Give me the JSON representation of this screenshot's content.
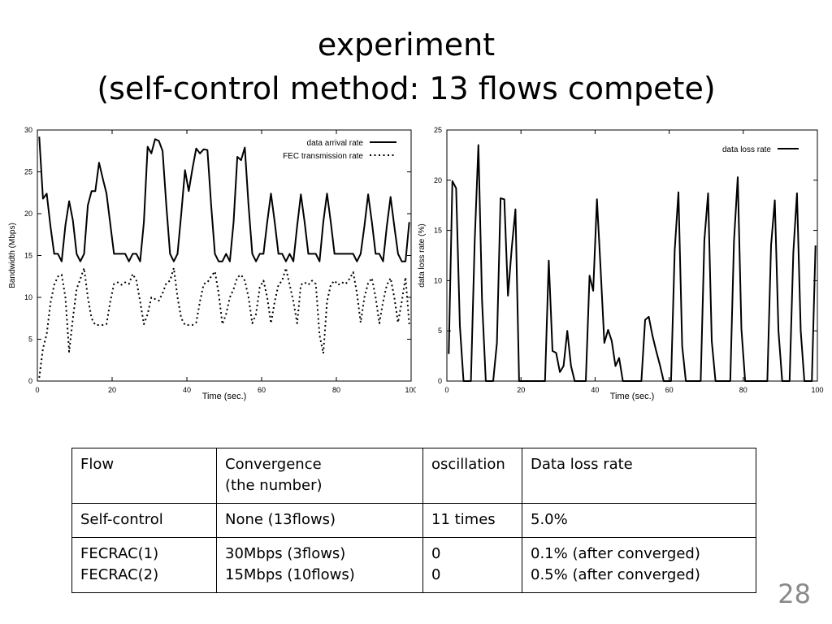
{
  "slide": {
    "title_line1": "experiment",
    "title_line2": "(self-control method: 13 flows compete)",
    "page_number": "28"
  },
  "chart_data": [
    {
      "type": "line",
      "xlabel": "Time (sec.)",
      "ylabel": "Bandwidth (Mbps)",
      "xlim": [
        0,
        100
      ],
      "ylim": [
        0,
        30
      ],
      "xticks": [
        0,
        20,
        40,
        60,
        80,
        100
      ],
      "yticks": [
        0,
        5,
        10,
        15,
        20,
        25,
        30
      ],
      "legend_position": "top-right",
      "grid": false,
      "series": [
        {
          "name": "data arrival rate",
          "style": "solid",
          "x": [
            0.5,
            1.5,
            2.5,
            3.5,
            4.5,
            5.5,
            6.5,
            7.5,
            8.5,
            9.5,
            10.5,
            11.5,
            12.5,
            13.5,
            14.5,
            15.5,
            16.5,
            17.5,
            18.5,
            19.5,
            20.5,
            21.5,
            22.5,
            23.5,
            24.5,
            25.5,
            26.5,
            27.5,
            28.5,
            29.5,
            30.5,
            31.5,
            32.5,
            33.5,
            34.5,
            35.5,
            36.5,
            37.5,
            38.5,
            39.5,
            40.5,
            41.5,
            42.5,
            43.5,
            44.5,
            45.5,
            46.5,
            47.5,
            48.5,
            49.5,
            50.5,
            51.5,
            52.5,
            53.5,
            54.5,
            55.5,
            56.5,
            57.5,
            58.5,
            59.5,
            60.5,
            61.5,
            62.5,
            63.5,
            64.5,
            65.5,
            66.5,
            67.5,
            68.5,
            69.5,
            70.5,
            71.5,
            72.5,
            73.5,
            74.5,
            75.5,
            76.5,
            77.5,
            78.5,
            79.5,
            80.5,
            81.5,
            82.5,
            83.5,
            84.5,
            85.5,
            86.5,
            87.5,
            88.5,
            89.5,
            90.5,
            91.5,
            92.5,
            93.5,
            94.5,
            95.5,
            96.5,
            97.5,
            98.5,
            99.5
          ],
          "y": [
            29.2,
            21.8,
            22.4,
            18.5,
            15.2,
            15.2,
            14.3,
            18.6,
            21.5,
            19.2,
            15.2,
            14.3,
            15.2,
            21.0,
            22.7,
            22.7,
            26.1,
            24.2,
            22.4,
            18.8,
            15.2,
            15.2,
            15.2,
            15.2,
            14.3,
            15.2,
            15.2,
            14.3,
            19.0,
            28.0,
            27.2,
            28.9,
            28.7,
            27.5,
            21.0,
            15.2,
            14.3,
            15.2,
            20.0,
            25.2,
            22.7,
            25.4,
            27.8,
            27.2,
            27.7,
            27.6,
            21.0,
            15.2,
            14.3,
            14.3,
            15.2,
            14.3,
            19.0,
            26.8,
            26.4,
            27.9,
            21.0,
            15.2,
            14.3,
            15.2,
            15.2,
            19.0,
            22.4,
            19.0,
            15.2,
            15.2,
            14.3,
            15.2,
            14.3,
            18.5,
            22.3,
            19.0,
            15.2,
            15.2,
            15.2,
            14.3,
            19.0,
            22.4,
            19.0,
            15.2,
            15.2,
            15.2,
            15.2,
            15.2,
            15.2,
            14.3,
            15.2,
            18.5,
            22.3,
            19.0,
            15.2,
            15.2,
            14.3,
            18.5,
            22.0,
            18.5,
            15.2,
            14.3,
            14.3,
            19.0
          ]
        },
        {
          "name": "FEC transmission rate",
          "style": "dotted",
          "x": [
            0.5,
            1.5,
            2.5,
            3.5,
            4.5,
            5.5,
            6.5,
            7.5,
            8.5,
            9.5,
            10.5,
            11.5,
            12.5,
            13.5,
            14.5,
            15.5,
            16.5,
            17.5,
            18.5,
            19.5,
            20.5,
            21.5,
            22.5,
            23.5,
            24.5,
            25.5,
            26.5,
            27.5,
            28.5,
            29.5,
            30.5,
            31.5,
            32.5,
            33.5,
            34.5,
            35.5,
            36.5,
            37.5,
            38.5,
            39.5,
            40.5,
            41.5,
            42.5,
            43.5,
            44.5,
            45.5,
            46.5,
            47.5,
            48.5,
            49.5,
            50.5,
            51.5,
            52.5,
            53.5,
            54.5,
            55.5,
            56.5,
            57.5,
            58.5,
            59.5,
            60.5,
            61.5,
            62.5,
            63.5,
            64.5,
            65.5,
            66.5,
            67.5,
            68.5,
            69.5,
            70.5,
            71.5,
            72.5,
            73.5,
            74.5,
            75.5,
            76.5,
            77.5,
            78.5,
            79.5,
            80.5,
            81.5,
            82.5,
            83.5,
            84.5,
            85.5,
            86.5,
            87.5,
            88.5,
            89.5,
            90.5,
            91.5,
            92.5,
            93.5,
            94.5,
            95.5,
            96.5,
            97.5,
            98.5,
            99.5
          ],
          "y": [
            0.4,
            3.9,
            5.6,
            9.3,
            11.5,
            12.5,
            12.7,
            10.0,
            3.5,
            7.5,
            11.0,
            12.2,
            13.5,
            10.0,
            7.5,
            6.7,
            6.7,
            6.7,
            6.8,
            9.5,
            11.6,
            11.8,
            11.5,
            11.8,
            11.6,
            12.8,
            12.0,
            9.5,
            6.8,
            8.0,
            10.0,
            9.8,
            9.6,
            10.5,
            11.7,
            12.0,
            13.5,
            10.0,
            7.5,
            6.7,
            6.7,
            6.7,
            7.0,
            9.5,
            11.6,
            11.8,
            12.5,
            13.1,
            10.5,
            6.8,
            8.0,
            10.0,
            11.0,
            12.4,
            12.7,
            12.0,
            10.0,
            6.9,
            8.0,
            11.2,
            12.0,
            10.0,
            6.9,
            9.5,
            11.5,
            12.0,
            13.5,
            11.5,
            9.5,
            6.9,
            11.5,
            11.8,
            11.5,
            12.0,
            11.6,
            5.5,
            3.3,
            9.5,
            11.5,
            12.0,
            11.5,
            11.8,
            11.6,
            12.2,
            13.0,
            10.5,
            7.0,
            10.0,
            11.7,
            12.3,
            10.0,
            6.9,
            9.5,
            11.5,
            12.3,
            10.0,
            7.0,
            9.5,
            12.4,
            6.8
          ]
        }
      ]
    },
    {
      "type": "line",
      "xlabel": "Time (sec.)",
      "ylabel": "data loss rate (%)",
      "xlim": [
        0,
        100
      ],
      "ylim": [
        0,
        25
      ],
      "xticks": [
        0,
        20,
        40,
        60,
        80,
        100
      ],
      "yticks": [
        0,
        5,
        10,
        15,
        20,
        25
      ],
      "legend_position": "top-right",
      "grid": false,
      "series": [
        {
          "name": "data loss rate",
          "style": "solid",
          "x": [
            0.5,
            1.5,
            2.5,
            3.5,
            4.5,
            5.5,
            6.5,
            7.5,
            8.5,
            9.5,
            10.5,
            11.5,
            12.5,
            13.5,
            14.5,
            15.5,
            16.5,
            17.5,
            18.5,
            19.5,
            20.5,
            21.5,
            22.5,
            23.5,
            24.5,
            25.5,
            26.5,
            27.5,
            28.5,
            29.5,
            30.5,
            31.5,
            32.5,
            33.5,
            34.5,
            35.5,
            36.5,
            37.5,
            38.5,
            39.5,
            40.5,
            41.5,
            42.5,
            43.5,
            44.5,
            45.5,
            46.5,
            47.5,
            48.5,
            49.5,
            50.5,
            51.5,
            52.5,
            53.5,
            54.5,
            55.5,
            56.5,
            57.5,
            58.5,
            59.5,
            60.5,
            61.5,
            62.5,
            63.5,
            64.5,
            65.5,
            66.5,
            67.5,
            68.5,
            69.5,
            70.5,
            71.5,
            72.5,
            73.5,
            74.5,
            75.5,
            76.5,
            77.5,
            78.5,
            79.5,
            80.5,
            81.5,
            82.5,
            83.5,
            84.5,
            85.5,
            86.5,
            87.5,
            88.5,
            89.5,
            90.5,
            91.5,
            92.5,
            93.5,
            94.5,
            95.5,
            96.5,
            97.5,
            98.5,
            99.5
          ],
          "y": [
            2.7,
            19.9,
            19.2,
            5.5,
            0,
            0,
            0,
            13.8,
            23.5,
            8.0,
            0,
            0,
            0,
            3.8,
            18.2,
            18.1,
            8.5,
            13.2,
            17.1,
            0,
            0,
            0,
            0,
            0,
            0,
            0,
            0,
            12.0,
            3.0,
            2.8,
            0.9,
            1.5,
            5.0,
            1.5,
            0,
            0,
            0,
            0,
            10.5,
            9.0,
            18.1,
            11.2,
            3.8,
            5.1,
            4.0,
            1.5,
            2.3,
            0,
            0,
            0,
            0,
            0,
            0,
            6.1,
            6.4,
            4.5,
            3.0,
            1.6,
            0,
            0,
            0,
            13.0,
            18.8,
            3.5,
            0,
            0,
            0,
            0,
            0,
            14.0,
            18.7,
            4.0,
            0,
            0,
            0,
            0,
            0,
            14.0,
            20.3,
            5.2,
            0,
            0,
            0,
            0,
            0,
            0,
            0,
            13.5,
            18.0,
            5.0,
            0,
            0,
            0,
            12.8,
            18.7,
            5.0,
            0,
            0,
            0,
            13.5
          ]
        }
      ]
    }
  ],
  "table": {
    "header": [
      "Flow",
      "Convergence\n(the number)",
      "oscillation",
      "Data loss rate"
    ],
    "rows": [
      [
        "Self-control",
        "None (13flows)",
        "11 times",
        "5.0%"
      ],
      [
        "FECRAC(1)\nFECRAC(2)",
        "30Mbps (3flows)\n15Mbps (10flows)",
        "0\n0",
        "0.1% (after converged)\n0.5% (after converged)"
      ]
    ]
  }
}
